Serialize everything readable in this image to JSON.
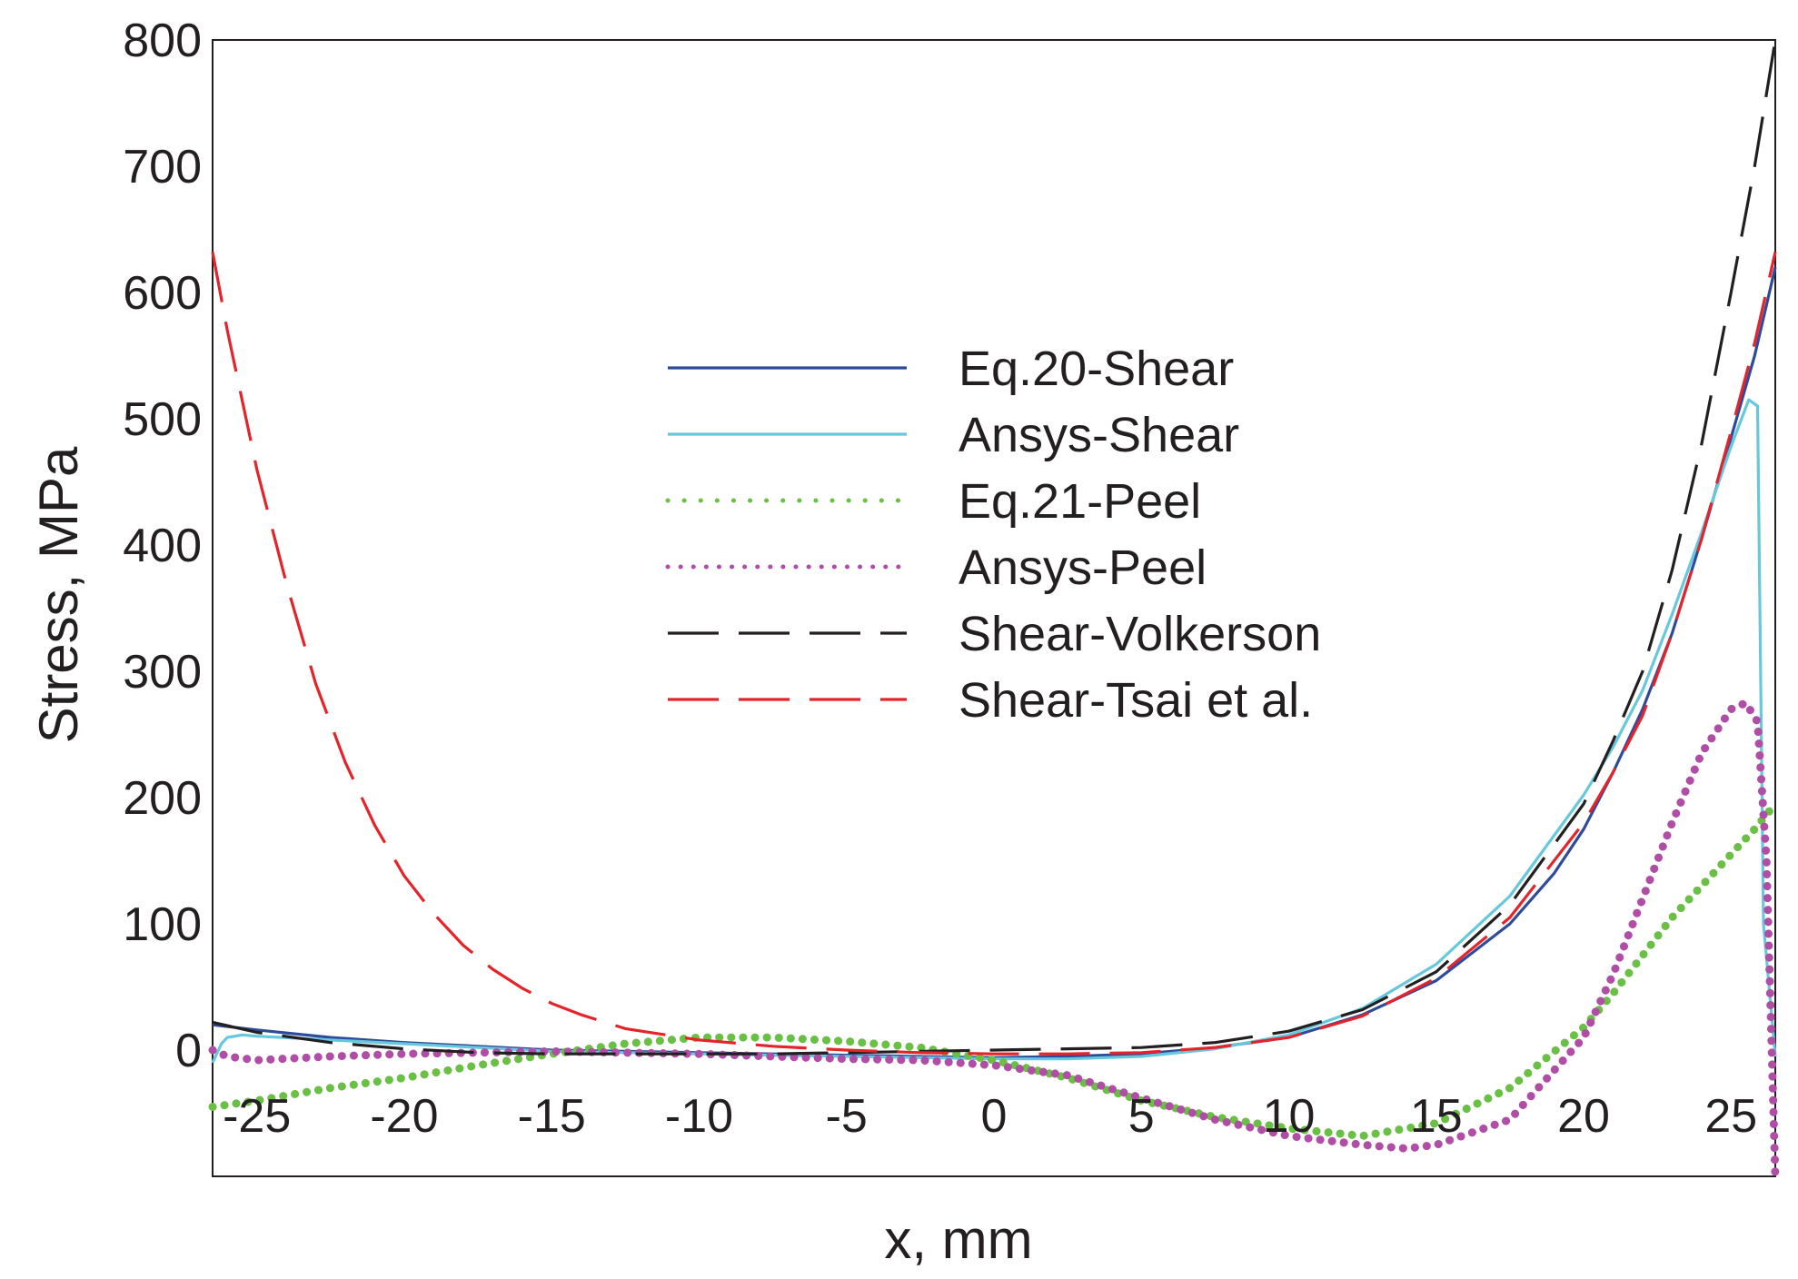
{
  "chart_data": {
    "type": "line",
    "title": "",
    "xlabel": "x, mm",
    "ylabel": "Stress, MPa",
    "xlim": [
      -26.5,
      26.5
    ],
    "ylim": [
      -100,
      800
    ],
    "x_axis_at_y": 0,
    "grid": false,
    "legend_position": "center",
    "x_ticks": [
      -25,
      -20,
      -15,
      -10,
      -5,
      0,
      5,
      10,
      15,
      20,
      25
    ],
    "x_tick_labels": [
      "-25",
      "-20",
      "-15",
      "-10",
      "-5",
      "0",
      "5",
      "10",
      "15",
      "20",
      "25"
    ],
    "y_ticks": [
      0,
      100,
      200,
      300,
      400,
      500,
      600,
      700,
      800
    ],
    "y_tick_labels": [
      "0",
      "100",
      "200",
      "300",
      "400",
      "500",
      "600",
      "700",
      "800"
    ],
    "series": [
      {
        "name": "Eq.20-Shear",
        "color": "#2e4b9b",
        "style": "solid",
        "x": [
          -26.5,
          -25,
          -22.5,
          -20,
          -17.5,
          -15,
          -12.5,
          -10,
          -7.5,
          -5,
          -2.5,
          0,
          2.5,
          5,
          7.5,
          10,
          12.5,
          15,
          17.5,
          19,
          20,
          21,
          22,
          23,
          24,
          25,
          25.8,
          26.5
        ],
        "y": [
          20,
          16,
          10,
          6,
          3,
          0,
          -1,
          -2,
          -3,
          -4,
          -5,
          -6,
          -5,
          -3,
          2,
          10,
          28,
          55,
          100,
          140,
          175,
          220,
          270,
          330,
          405,
          485,
          550,
          620
        ]
      },
      {
        "name": "Ansys-Shear",
        "color": "#67c8dd",
        "style": "solid",
        "x": [
          -26.5,
          -26.2,
          -26,
          -25.5,
          -25,
          -22.5,
          -20,
          -17.5,
          -15,
          -12.5,
          -10,
          -7.5,
          -5,
          -2.5,
          0,
          2.5,
          5,
          7.5,
          10,
          12.5,
          15,
          17.5,
          20,
          21,
          22,
          23,
          24,
          25,
          25.6,
          25.9,
          26.1,
          26.5
        ],
        "y": [
          -10,
          5,
          10,
          12,
          11,
          8,
          5,
          2,
          -1,
          -2,
          -3,
          -4,
          -5,
          -6,
          -7,
          -7,
          -5,
          1,
          12,
          33,
          68,
          122,
          202,
          240,
          285,
          345,
          410,
          478,
          515,
          510,
          100,
          -5
        ]
      },
      {
        "name": "Eq.21-Peel",
        "color": "#6abf45",
        "style": "dotted",
        "x": [
          -26.5,
          -25,
          -22.5,
          -20,
          -17.5,
          -15,
          -12.5,
          -10,
          -7.5,
          -5,
          -2.5,
          0,
          2.5,
          5,
          7.5,
          10,
          12.5,
          15,
          17.5,
          20,
          21,
          22,
          23,
          24,
          25,
          25.8,
          26.5
        ],
        "y": [
          -45,
          -40,
          -30,
          -22,
          -12,
          -3,
          5,
          10,
          10,
          7,
          2,
          -8,
          -22,
          -40,
          -53,
          -62,
          -68,
          -58,
          -30,
          18,
          45,
          75,
          105,
          130,
          155,
          175,
          195
        ]
      },
      {
        "name": "Ansys-Peel",
        "color": "#b04ea6",
        "style": "dotted",
        "x": [
          -26.5,
          -26,
          -25,
          -22.5,
          -20,
          -17.5,
          -15,
          -12.5,
          -10,
          -7.5,
          -5,
          -2.5,
          0,
          2.5,
          5,
          7.5,
          10,
          12.5,
          14,
          15,
          17.5,
          20,
          21,
          22,
          23,
          24,
          25,
          25.5,
          25.9,
          26.2,
          26.5
        ],
        "y": [
          0,
          -5,
          -8,
          -5,
          -3,
          -2,
          -1,
          -2,
          -3,
          -5,
          -7,
          -8,
          -12,
          -20,
          -38,
          -55,
          -68,
          -75,
          -78,
          -75,
          -55,
          10,
          60,
          120,
          180,
          235,
          270,
          275,
          260,
          150,
          -100
        ]
      },
      {
        "name": "Shear-Volkerson",
        "color": "#231f20",
        "style": "dashed",
        "x": [
          -26.5,
          -25,
          -22.5,
          -20,
          -17.5,
          -15,
          -12.5,
          -10,
          -7.5,
          -5,
          -2.5,
          0,
          2.5,
          5,
          7.5,
          10,
          12.5,
          15,
          17.5,
          20,
          21,
          22,
          23,
          24,
          25,
          25.8,
          26.5
        ],
        "y": [
          22,
          14,
          6,
          1,
          -2,
          -3,
          -3,
          -3,
          -3,
          -2,
          -1,
          0,
          1,
          2,
          6,
          15,
          32,
          62,
          115,
          195,
          245,
          300,
          380,
          480,
          600,
          700,
          800
        ]
      },
      {
        "name": "Shear-Tsai et al.",
        "color": "#e5232a",
        "style": "dashed",
        "x": [
          -26.5,
          -26,
          -25,
          -24,
          -23,
          -22,
          -21,
          -20,
          -19,
          -18,
          -17,
          -16,
          -15,
          -14,
          -12.5,
          -10,
          -7.5,
          -5,
          -2.5,
          0,
          2.5,
          5,
          7.5,
          10,
          12.5,
          15,
          17.5,
          20,
          21,
          22,
          23,
          24,
          25,
          25.8,
          26.5
        ],
        "y": [
          632,
          570,
          460,
          370,
          290,
          228,
          178,
          138,
          108,
          83,
          64,
          49,
          37,
          28,
          17,
          8,
          3,
          0,
          -2,
          -3,
          -3,
          -2,
          2,
          10,
          27,
          57,
          105,
          180,
          220,
          265,
          330,
          405,
          490,
          560,
          632
        ]
      }
    ]
  }
}
